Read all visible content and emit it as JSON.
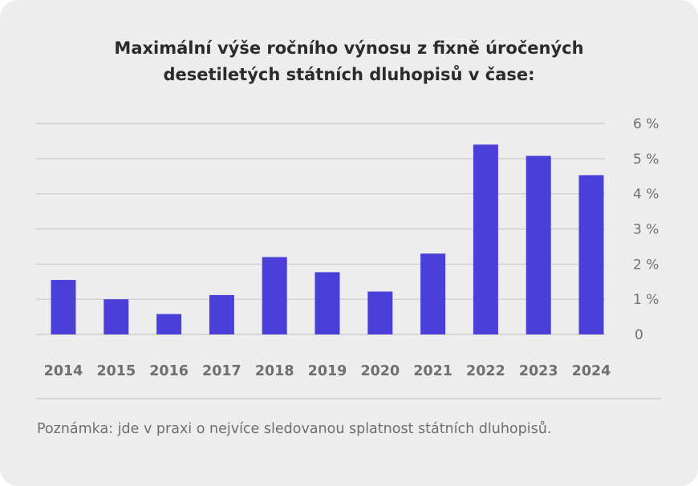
{
  "title_line1": "Maximální výše ročního výnosu z fixně úročených",
  "title_line2": "desetiletých státních dluhopisů v čase:",
  "note": "Poznámka: jde v praxi o nejvíce sledovanou splatnost státních dluhopisů.",
  "colors": {
    "bar": "#4b3fd9",
    "grid": "#c9c9c9",
    "background": "#ededed",
    "text": "#6f6f6f"
  },
  "chart_data": {
    "type": "bar",
    "title": "Maximální výše ročního výnosu z fixně úročených desetiletých státních dluhopisů v čase:",
    "categories": [
      "2014",
      "2015",
      "2016",
      "2017",
      "2018",
      "2019",
      "2020",
      "2021",
      "2022",
      "2023",
      "2024"
    ],
    "values": [
      1.55,
      1.0,
      0.58,
      1.12,
      2.2,
      1.77,
      1.22,
      2.3,
      5.4,
      5.08,
      4.53
    ],
    "y_ticks": [
      "0",
      "1 %",
      "2 %",
      "3 %",
      "4 %",
      "5 %",
      "6 %"
    ],
    "ylim": [
      0,
      6
    ],
    "xlabel": "",
    "ylabel": "",
    "grid": true,
    "y_axis_side": "right"
  }
}
